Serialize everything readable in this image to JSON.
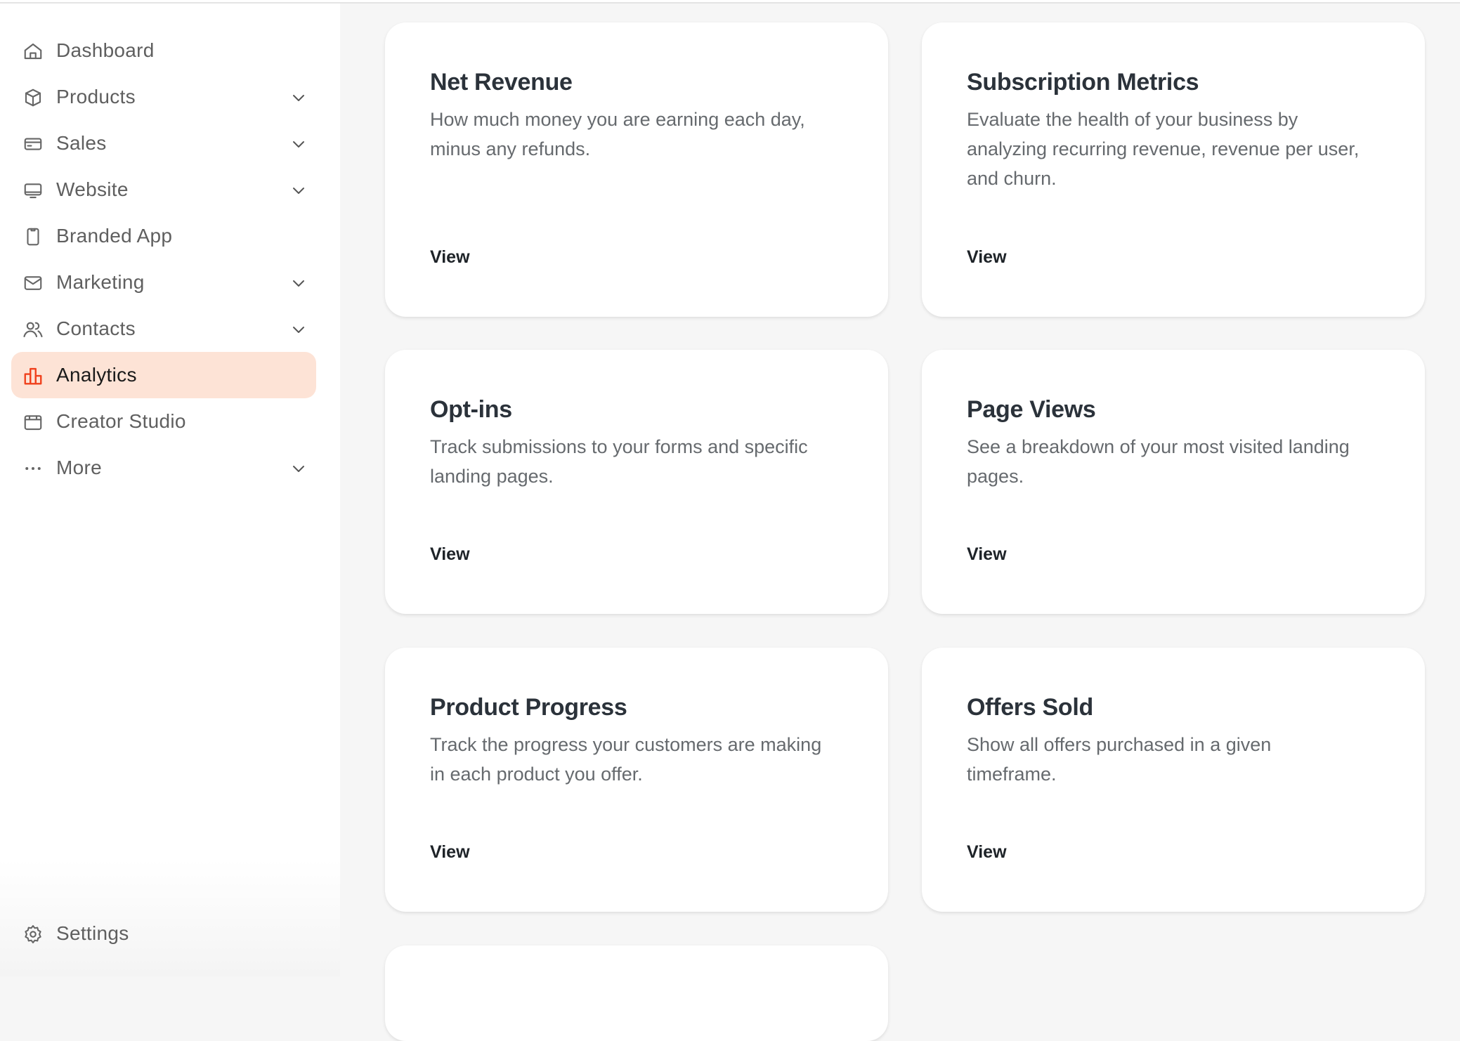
{
  "sidebar": {
    "items": [
      {
        "label": "Dashboard",
        "icon": "home-icon",
        "has_chevron": false
      },
      {
        "label": "Products",
        "icon": "box-icon",
        "has_chevron": true
      },
      {
        "label": "Sales",
        "icon": "credit-card-icon",
        "has_chevron": true
      },
      {
        "label": "Website",
        "icon": "monitor-icon",
        "has_chevron": true
      },
      {
        "label": "Branded App",
        "icon": "phone-icon",
        "has_chevron": false
      },
      {
        "label": "Marketing",
        "icon": "mail-icon",
        "has_chevron": true
      },
      {
        "label": "Contacts",
        "icon": "users-icon",
        "has_chevron": true
      },
      {
        "label": "Analytics",
        "icon": "bar-chart-icon",
        "has_chevron": false,
        "active": true
      },
      {
        "label": "Creator Studio",
        "icon": "calendar-icon",
        "has_chevron": false
      },
      {
        "label": "More",
        "icon": "dots-icon",
        "has_chevron": true
      }
    ],
    "settings": {
      "label": "Settings",
      "icon": "gear-icon"
    },
    "active_color": "#fde3d6",
    "active_icon_color": "#f0401c"
  },
  "cards": [
    {
      "title": "Net Revenue",
      "description": "How much money you are earning each day, minus any refunds.",
      "link": "View"
    },
    {
      "title": "Subscription Metrics",
      "description": "Evaluate the health of your business by analyzing recurring revenue, revenue per user, and churn.",
      "link": "View"
    },
    {
      "title": "Opt-ins",
      "description": "Track submissions to your forms and specific landing pages.",
      "link": "View"
    },
    {
      "title": "Page Views",
      "description": "See a breakdown of your most visited landing pages.",
      "link": "View"
    },
    {
      "title": "Product Progress",
      "description": "Track the progress your customers are making in each product you offer.",
      "link": "View"
    },
    {
      "title": "Offers Sold",
      "description": "Show all offers purchased in a given timeframe.",
      "link": "View"
    }
  ]
}
